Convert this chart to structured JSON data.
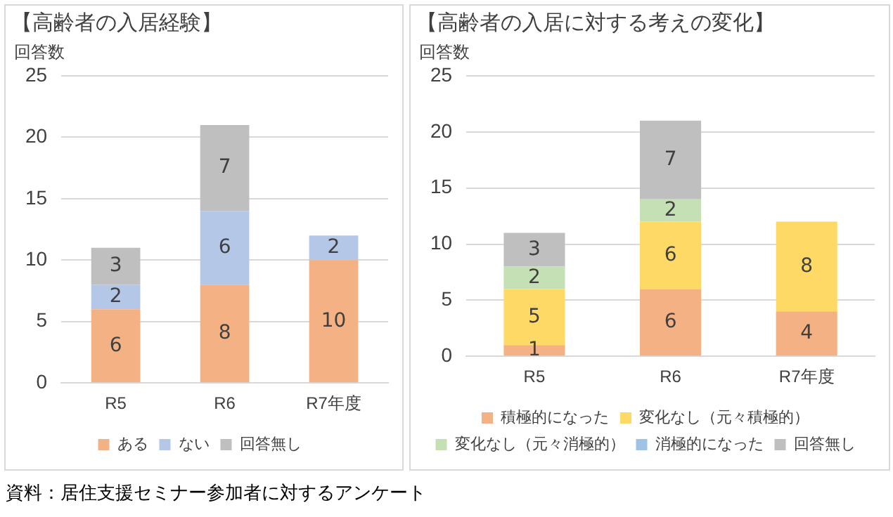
{
  "chart_data": [
    {
      "type": "bar",
      "title": "【高齢者の入居経験】",
      "ylabel": "回答数",
      "categories": [
        "R5",
        "R6",
        "R7年度"
      ],
      "stacked": true,
      "ylim": [
        0,
        25
      ],
      "yticks": [
        0,
        5,
        10,
        15,
        20,
        25
      ],
      "grid": "y",
      "legend": "bottom",
      "data_labels": true,
      "series": [
        {
          "name": "ある",
          "color": "#f4b183",
          "values": [
            6,
            8,
            10
          ]
        },
        {
          "name": "ない",
          "color": "#b4c7e7",
          "values": [
            2,
            6,
            2
          ]
        },
        {
          "name": "回答無し",
          "color": "#bfbfbf",
          "values": [
            3,
            7,
            null
          ]
        }
      ]
    },
    {
      "type": "bar",
      "title": "【高齢者の入居に対する考えの変化】",
      "ylabel": "回答数",
      "categories": [
        "R5",
        "R6",
        "R7年度"
      ],
      "stacked": true,
      "ylim": [
        0,
        25
      ],
      "yticks": [
        0,
        5,
        10,
        15,
        20,
        25
      ],
      "grid": "y",
      "legend": "bottom",
      "data_labels": true,
      "annotations": [
        "資料：居住支援セミナー参加者に対するアンケート"
      ],
      "series": [
        {
          "name": "積極的になった",
          "color": "#f4b183",
          "values": [
            1,
            6,
            4
          ]
        },
        {
          "name": "変化なし（元々積極的）",
          "color": "#ffd966",
          "values": [
            5,
            6,
            8
          ]
        },
        {
          "name": "変化なし（元々消極的）",
          "color": "#c5e0b4",
          "values": [
            2,
            2,
            null
          ]
        },
        {
          "name": "消極的になった",
          "color": "#9dc3e6",
          "values": [
            null,
            null,
            null
          ]
        },
        {
          "name": "回答無し",
          "color": "#bfbfbf",
          "values": [
            3,
            7,
            null
          ]
        }
      ]
    }
  ]
}
